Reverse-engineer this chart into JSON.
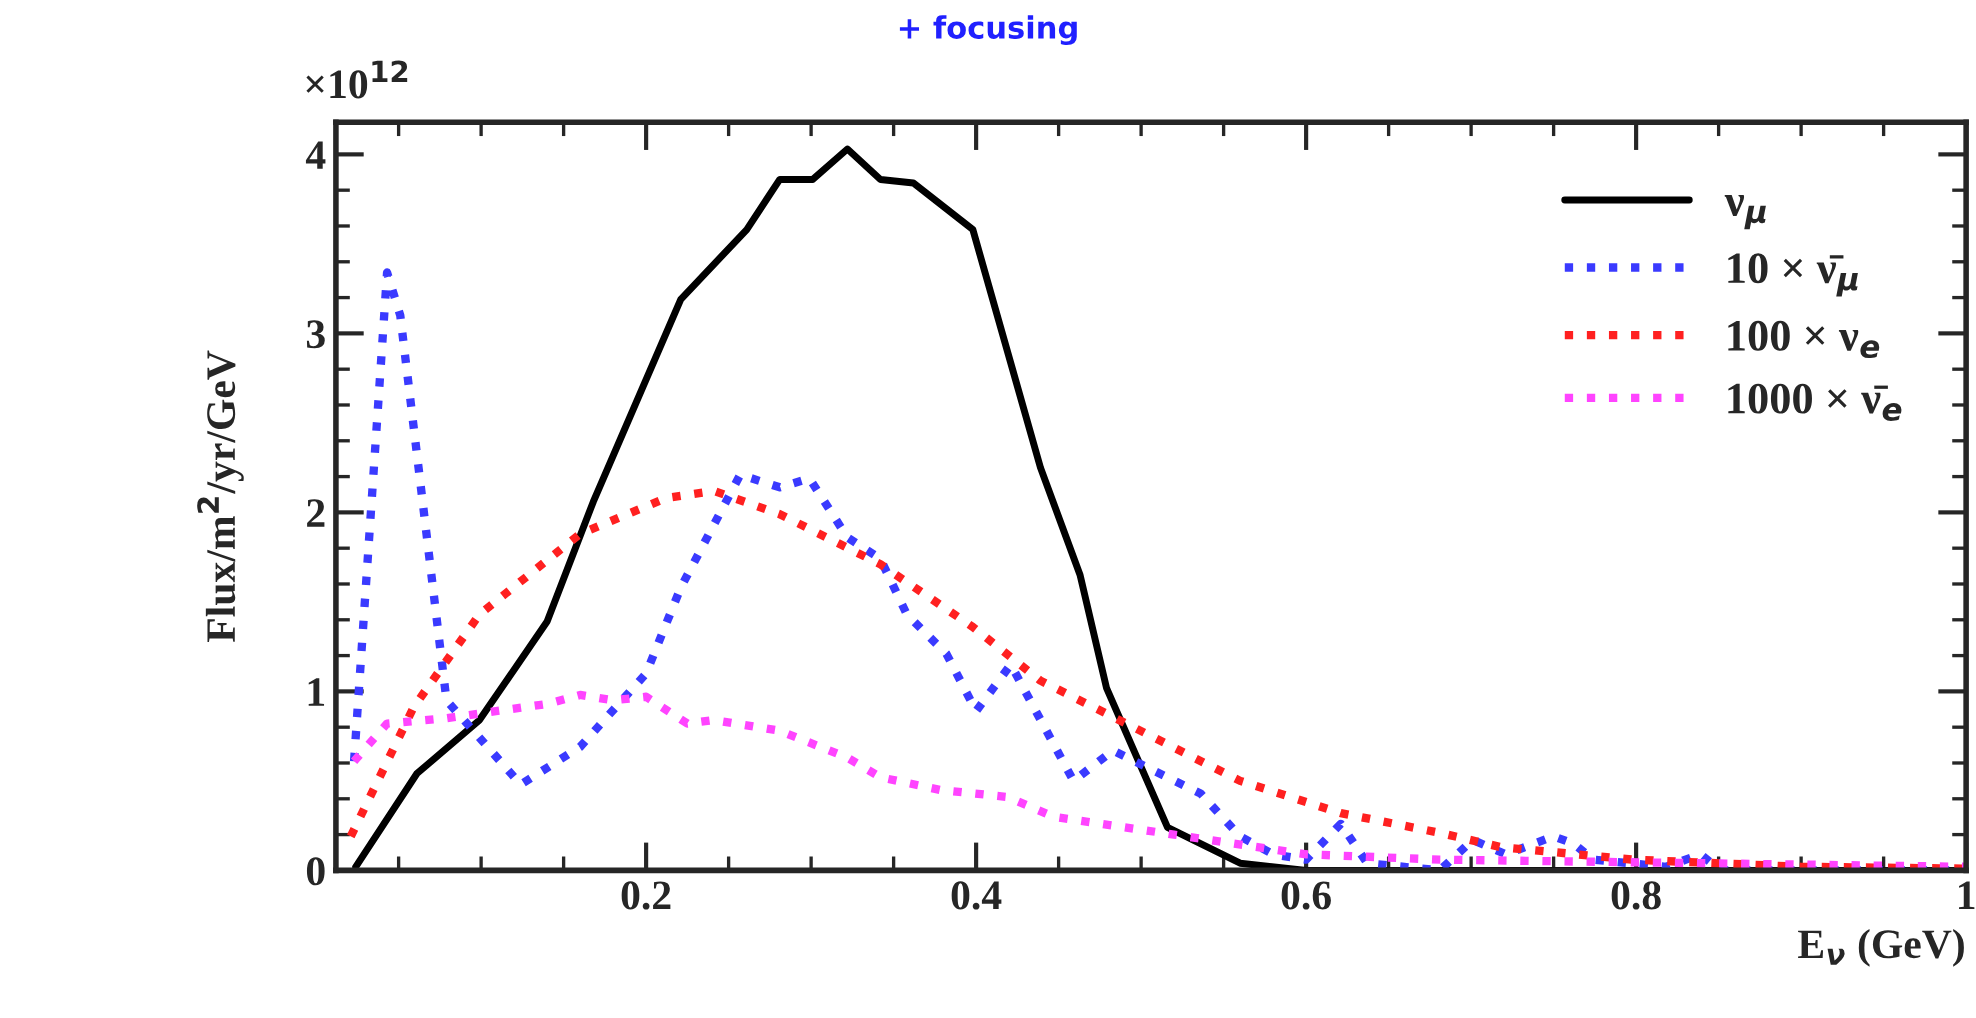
{
  "chart_data": {
    "type": "line",
    "title": "+ focusing",
    "xlabel": "E$_{ν}$ (GeV)",
    "ylabel": "Flux/m$^{2}$/yr/GeV",
    "annotations": [
      "×10$^{12}$"
    ],
    "xlim": [
      0.012,
      1
    ],
    "ylim": [
      0,
      4.18
    ],
    "xticks": [
      0.2,
      0.4,
      0.6,
      0.8,
      1
    ],
    "yticks": [
      0,
      1,
      2,
      3,
      4
    ],
    "grid": false,
    "legend": "top right",
    "marker": "none",
    "series": [
      {
        "name": "ν$_{μ}$",
        "color": "#000000",
        "line_style": "solid",
        "x": [
          0.024,
          0.061,
          0.099,
          0.14,
          0.168,
          0.198,
          0.221,
          0.261,
          0.281,
          0.301,
          0.322,
          0.342,
          0.362,
          0.398,
          0.439,
          0.463,
          0.479,
          0.516,
          0.56,
          0.6,
          0.65,
          1
        ],
        "values": [
          0.02,
          0.54,
          0.84,
          1.39,
          2.06,
          2.7,
          3.19,
          3.58,
          3.86,
          3.86,
          4.03,
          3.86,
          3.84,
          3.58,
          2.25,
          1.65,
          1.02,
          0.24,
          0.04,
          0,
          0,
          0
        ]
      },
      {
        "name": "10 × ν̄$_{μ}$",
        "color": "#3a3aff",
        "line_style": "dotted",
        "x": [
          0.023,
          0.043,
          0.051,
          0.079,
          0.124,
          0.16,
          0.2,
          0.221,
          0.257,
          0.281,
          0.299,
          0.322,
          0.342,
          0.358,
          0.382,
          0.4,
          0.421,
          0.459,
          0.483,
          0.507,
          0.536,
          0.56,
          0.58,
          0.6,
          0.621,
          0.637,
          0.681,
          0.701,
          0.721,
          0.75,
          0.762,
          0.774,
          0.818,
          0.839,
          0.851,
          1
        ],
        "values": [
          0.61,
          3.34,
          3.1,
          0.95,
          0.48,
          0.69,
          1.1,
          1.58,
          2.21,
          2.14,
          2.19,
          1.86,
          1.74,
          1.43,
          1.21,
          0.89,
          1.15,
          0.5,
          0.67,
          0.56,
          0.43,
          0.19,
          0.09,
          0.06,
          0.26,
          0.04,
          0,
          0.17,
          0.09,
          0.19,
          0.15,
          0.06,
          0.02,
          0.09,
          0,
          0
        ]
      },
      {
        "name": "100 × ν$_{e}$",
        "color": "#ff2020",
        "line_style": "dotted",
        "x": [
          0.021,
          0.059,
          0.099,
          0.16,
          0.212,
          0.241,
          0.281,
          0.342,
          0.398,
          0.439,
          0.491,
          0.56,
          0.621,
          0.681,
          0.718,
          0.798,
          0.9,
          1
        ],
        "values": [
          0.19,
          0.91,
          1.43,
          1.88,
          2.08,
          2.12,
          1.99,
          1.71,
          1.36,
          1.06,
          0.82,
          0.5,
          0.32,
          0.21,
          0.13,
          0.06,
          0.02,
          0.01
        ]
      },
      {
        "name": "1000 × ν̄$_{e}$",
        "color": "#ff44ff",
        "line_style": "dotted",
        "x": [
          0.023,
          0.043,
          0.079,
          0.14,
          0.16,
          0.18,
          0.2,
          0.225,
          0.241,
          0.281,
          0.322,
          0.342,
          0.378,
          0.419,
          0.447,
          0.52,
          0.6,
          0.681,
          1
        ],
        "values": [
          0.61,
          0.82,
          0.85,
          0.93,
          0.98,
          0.95,
          0.97,
          0.82,
          0.84,
          0.78,
          0.63,
          0.52,
          0.45,
          0.41,
          0.3,
          0.2,
          0.09,
          0.06,
          0.02
        ]
      }
    ]
  }
}
